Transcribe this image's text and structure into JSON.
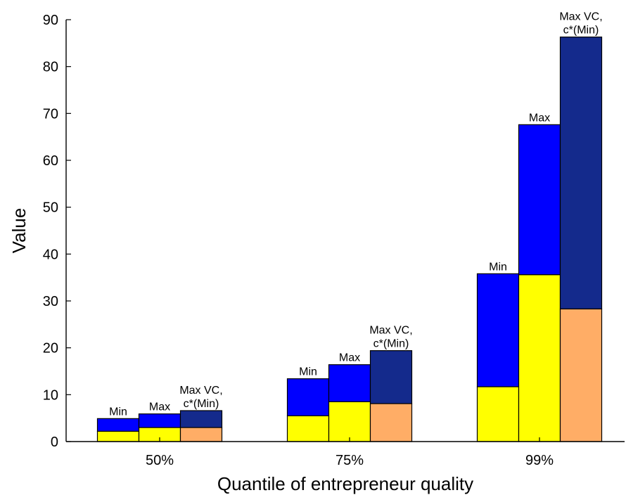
{
  "chart_data": {
    "type": "bar",
    "stacked": true,
    "xlabel": "Quantile of entrepreneur quality",
    "ylabel": "Value",
    "ylim": [
      0,
      90
    ],
    "yticks": [
      0,
      10,
      20,
      30,
      40,
      50,
      60,
      70,
      80,
      90
    ],
    "grid": false,
    "groups": [
      {
        "label": "50%",
        "bars": [
          {
            "label": [
              "Min"
            ],
            "bottom": 2.2,
            "total": 4.9,
            "bottom_color": "#ffff00",
            "top_color": "#0000ff"
          },
          {
            "label": [
              "Max"
            ],
            "bottom": 3.0,
            "total": 5.9,
            "bottom_color": "#ffff00",
            "top_color": "#0000ff"
          },
          {
            "label": [
              "Max VC,",
              "c*(Min)"
            ],
            "bottom": 3.0,
            "total": 6.6,
            "bottom_color": "#ffad66",
            "top_color": "#142a8c"
          }
        ]
      },
      {
        "label": "75%",
        "bars": [
          {
            "label": [
              "Min"
            ],
            "bottom": 5.5,
            "total": 13.4,
            "bottom_color": "#ffff00",
            "top_color": "#0000ff"
          },
          {
            "label": [
              "Max"
            ],
            "bottom": 8.5,
            "total": 16.4,
            "bottom_color": "#ffff00",
            "top_color": "#0000ff"
          },
          {
            "label": [
              "Max VC,",
              "c*(Min)"
            ],
            "bottom": 8.1,
            "total": 19.4,
            "bottom_color": "#ffad66",
            "top_color": "#142a8c"
          }
        ]
      },
      {
        "label": "99%",
        "bars": [
          {
            "label": [
              "Min"
            ],
            "bottom": 11.7,
            "total": 35.8,
            "bottom_color": "#ffff00",
            "top_color": "#0000ff"
          },
          {
            "label": [
              "Max"
            ],
            "bottom": 35.6,
            "total": 67.6,
            "bottom_color": "#ffff00",
            "top_color": "#0000ff"
          },
          {
            "label": [
              "Max VC,",
              "c*(Min)"
            ],
            "bottom": 28.3,
            "total": 86.3,
            "bottom_color": "#ffad66",
            "top_color": "#142a8c"
          }
        ]
      }
    ]
  }
}
